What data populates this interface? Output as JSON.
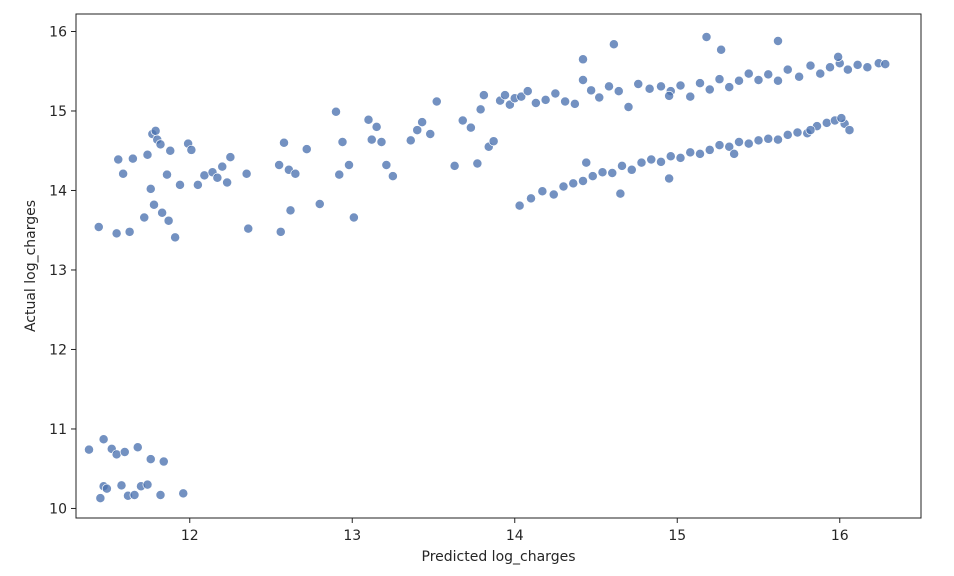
{
  "chart_data": {
    "type": "scatter",
    "title": "",
    "xlabel": "Predicted log_charges",
    "ylabel": "Actual log_charges",
    "xlim": [
      11.3,
      16.5
    ],
    "ylim": [
      9.88,
      16.22
    ],
    "xticks": [
      12,
      13,
      14,
      15,
      16
    ],
    "yticks": [
      10,
      11,
      12,
      13,
      14,
      15,
      16
    ],
    "grid": false,
    "marker_color": "#4C72B0",
    "marker_edge": "#ffffff",
    "points": [
      [
        11.38,
        10.74
      ],
      [
        11.45,
        10.13
      ],
      [
        11.47,
        10.28
      ],
      [
        11.49,
        10.25
      ],
      [
        11.52,
        10.75
      ],
      [
        11.55,
        10.68
      ],
      [
        11.58,
        10.29
      ],
      [
        11.62,
        10.16
      ],
      [
        11.66,
        10.17
      ],
      [
        11.7,
        10.28
      ],
      [
        11.74,
        10.3
      ],
      [
        11.82,
        10.17
      ],
      [
        11.96,
        10.19
      ],
      [
        11.47,
        10.87
      ],
      [
        11.6,
        10.71
      ],
      [
        11.68,
        10.77
      ],
      [
        11.76,
        10.62
      ],
      [
        11.84,
        10.59
      ],
      [
        11.44,
        13.54
      ],
      [
        11.55,
        13.46
      ],
      [
        11.63,
        13.48
      ],
      [
        11.72,
        13.66
      ],
      [
        11.78,
        13.82
      ],
      [
        11.83,
        13.72
      ],
      [
        11.87,
        13.62
      ],
      [
        11.91,
        13.41
      ],
      [
        11.56,
        14.39
      ],
      [
        11.59,
        14.21
      ],
      [
        11.65,
        14.4
      ],
      [
        11.74,
        14.45
      ],
      [
        11.77,
        14.71
      ],
      [
        11.79,
        14.75
      ],
      [
        11.8,
        14.64
      ],
      [
        11.82,
        14.58
      ],
      [
        11.76,
        14.02
      ],
      [
        11.86,
        14.2
      ],
      [
        11.88,
        14.5
      ],
      [
        11.94,
        14.07
      ],
      [
        11.99,
        14.59
      ],
      [
        12.01,
        14.51
      ],
      [
        12.05,
        14.07
      ],
      [
        12.09,
        14.19
      ],
      [
        12.14,
        14.23
      ],
      [
        12.17,
        14.16
      ],
      [
        12.2,
        14.3
      ],
      [
        12.23,
        14.1
      ],
      [
        12.25,
        14.42
      ],
      [
        12.35,
        14.21
      ],
      [
        12.36,
        13.52
      ],
      [
        12.55,
        14.32
      ],
      [
        12.58,
        14.6
      ],
      [
        12.61,
        14.26
      ],
      [
        12.65,
        14.21
      ],
      [
        12.62,
        13.75
      ],
      [
        12.72,
        14.52
      ],
      [
        12.8,
        13.83
      ],
      [
        12.56,
        13.48
      ],
      [
        12.9,
        14.99
      ],
      [
        12.92,
        14.2
      ],
      [
        12.94,
        14.61
      ],
      [
        12.98,
        14.32
      ],
      [
        13.01,
        13.66
      ],
      [
        13.1,
        14.89
      ],
      [
        13.12,
        14.64
      ],
      [
        13.15,
        14.8
      ],
      [
        13.18,
        14.61
      ],
      [
        13.21,
        14.32
      ],
      [
        13.25,
        14.18
      ],
      [
        13.36,
        14.63
      ],
      [
        13.4,
        14.76
      ],
      [
        13.43,
        14.86
      ],
      [
        13.48,
        14.71
      ],
      [
        13.52,
        15.12
      ],
      [
        13.63,
        14.31
      ],
      [
        13.68,
        14.88
      ],
      [
        13.73,
        14.79
      ],
      [
        13.77,
        14.34
      ],
      [
        13.79,
        15.02
      ],
      [
        13.81,
        15.2
      ],
      [
        13.84,
        14.55
      ],
      [
        13.87,
        14.62
      ],
      [
        13.91,
        15.13
      ],
      [
        13.94,
        15.2
      ],
      [
        13.97,
        15.08
      ],
      [
        14.0,
        15.16
      ],
      [
        14.04,
        15.18
      ],
      [
        14.08,
        15.25
      ],
      [
        14.13,
        15.1
      ],
      [
        14.19,
        15.14
      ],
      [
        14.25,
        15.22
      ],
      [
        14.31,
        15.12
      ],
      [
        14.37,
        15.09
      ],
      [
        14.42,
        15.39
      ],
      [
        14.47,
        15.26
      ],
      [
        14.52,
        15.17
      ],
      [
        14.58,
        15.31
      ],
      [
        14.64,
        15.25
      ],
      [
        14.7,
        15.05
      ],
      [
        14.76,
        15.34
      ],
      [
        14.83,
        15.28
      ],
      [
        14.9,
        15.31
      ],
      [
        14.96,
        15.25
      ],
      [
        15.02,
        15.32
      ],
      [
        15.08,
        15.18
      ],
      [
        15.14,
        15.35
      ],
      [
        15.2,
        15.27
      ],
      [
        15.26,
        15.4
      ],
      [
        15.32,
        15.3
      ],
      [
        15.38,
        15.38
      ],
      [
        15.44,
        15.47
      ],
      [
        15.5,
        15.39
      ],
      [
        15.56,
        15.46
      ],
      [
        15.62,
        15.38
      ],
      [
        15.68,
        15.52
      ],
      [
        15.75,
        15.43
      ],
      [
        15.82,
        15.57
      ],
      [
        15.88,
        15.47
      ],
      [
        15.94,
        15.55
      ],
      [
        16.0,
        15.6
      ],
      [
        16.05,
        15.52
      ],
      [
        16.11,
        15.58
      ],
      [
        16.17,
        15.55
      ],
      [
        16.24,
        15.6
      ],
      [
        16.28,
        15.59
      ],
      [
        14.42,
        15.65
      ],
      [
        14.61,
        15.84
      ],
      [
        14.95,
        15.19
      ],
      [
        15.18,
        15.93
      ],
      [
        15.27,
        15.77
      ],
      [
        15.62,
        15.88
      ],
      [
        15.99,
        15.68
      ],
      [
        14.03,
        13.81
      ],
      [
        14.1,
        13.9
      ],
      [
        14.17,
        13.99
      ],
      [
        14.24,
        13.95
      ],
      [
        14.3,
        14.05
      ],
      [
        14.36,
        14.09
      ],
      [
        14.42,
        14.12
      ],
      [
        14.48,
        14.18
      ],
      [
        14.54,
        14.23
      ],
      [
        14.6,
        14.22
      ],
      [
        14.66,
        14.31
      ],
      [
        14.72,
        14.26
      ],
      [
        14.78,
        14.35
      ],
      [
        14.84,
        14.39
      ],
      [
        14.9,
        14.36
      ],
      [
        14.96,
        14.43
      ],
      [
        15.02,
        14.41
      ],
      [
        15.08,
        14.48
      ],
      [
        15.14,
        14.46
      ],
      [
        15.2,
        14.51
      ],
      [
        15.26,
        14.57
      ],
      [
        15.32,
        14.55
      ],
      [
        15.38,
        14.61
      ],
      [
        15.44,
        14.59
      ],
      [
        15.5,
        14.63
      ],
      [
        15.56,
        14.65
      ],
      [
        15.62,
        14.64
      ],
      [
        15.68,
        14.7
      ],
      [
        15.74,
        14.73
      ],
      [
        15.8,
        14.72
      ],
      [
        15.86,
        14.81
      ],
      [
        15.92,
        14.85
      ],
      [
        15.97,
        14.88
      ],
      [
        16.03,
        14.84
      ],
      [
        16.06,
        14.76
      ],
      [
        15.35,
        14.46
      ],
      [
        14.95,
        14.15
      ],
      [
        14.65,
        13.96
      ],
      [
        14.44,
        14.35
      ],
      [
        15.82,
        14.76
      ],
      [
        16.01,
        14.91
      ]
    ]
  }
}
